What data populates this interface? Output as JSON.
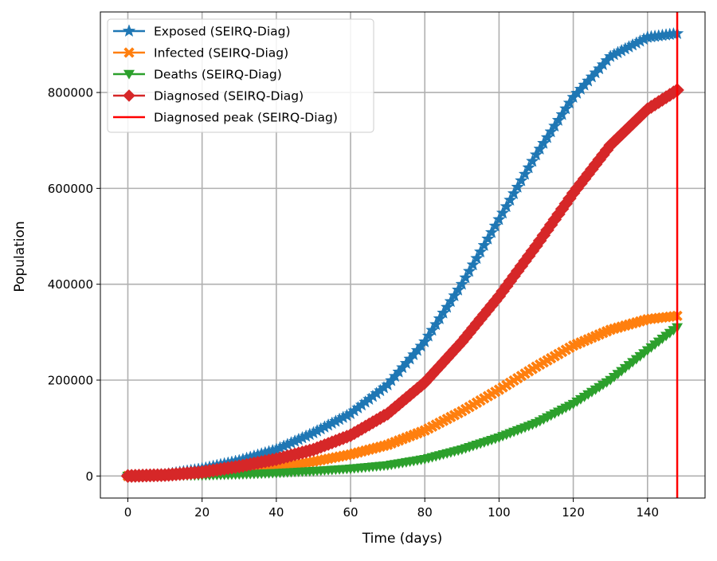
{
  "chart_data": {
    "type": "line",
    "title": "",
    "xlabel": "Time (days)",
    "ylabel": "Population",
    "xlim": [
      -7.4,
      155.5
    ],
    "ylim": [
      -46000,
      968000
    ],
    "xticks": [
      0,
      20,
      40,
      60,
      80,
      100,
      120,
      140
    ],
    "yticks": [
      0,
      200000,
      400000,
      600000,
      800000
    ],
    "grid": true,
    "legend_position": "upper left",
    "series": [
      {
        "name": "Exposed (SEIRQ-Diag)",
        "color": "#1f77b4",
        "marker": "star",
        "x": [
          0,
          10,
          20,
          30,
          40,
          50,
          60,
          70,
          80,
          90,
          100,
          110,
          120,
          130,
          140,
          148
        ],
        "y": [
          0,
          3000,
          15000,
          32000,
          55000,
          90000,
          130000,
          190000,
          280000,
          400000,
          535000,
          670000,
          790000,
          875000,
          915000,
          923000
        ]
      },
      {
        "name": "Infected (SEIRQ-Diag)",
        "color": "#ff7f0e",
        "marker": "x",
        "x": [
          0,
          10,
          20,
          30,
          40,
          50,
          60,
          70,
          80,
          90,
          100,
          110,
          120,
          130,
          140,
          148
        ],
        "y": [
          0,
          1000,
          5000,
          10000,
          18000,
          30000,
          45000,
          65000,
          95000,
          135000,
          180000,
          228000,
          272000,
          305000,
          327000,
          334000
        ]
      },
      {
        "name": "Deaths (SEIRQ-Diag)",
        "color": "#2ca02c",
        "marker": "triangle-down",
        "x": [
          0,
          10,
          20,
          30,
          40,
          50,
          60,
          70,
          80,
          90,
          100,
          110,
          120,
          130,
          140,
          148
        ],
        "y": [
          0,
          300,
          1000,
          3000,
          6000,
          10000,
          15000,
          22000,
          35000,
          55000,
          80000,
          110000,
          150000,
          200000,
          262000,
          310000
        ]
      },
      {
        "name": "Diagnosed (SEIRQ-Diag)",
        "color": "#d62728",
        "marker": "diamond",
        "x": [
          0,
          10,
          20,
          30,
          40,
          50,
          60,
          70,
          80,
          90,
          100,
          110,
          120,
          130,
          140,
          148
        ],
        "y": [
          0,
          2000,
          8000,
          20000,
          35000,
          55000,
          85000,
          130000,
          195000,
          280000,
          375000,
          480000,
          590000,
          690000,
          765000,
          805000
        ]
      }
    ],
    "vline": {
      "name": "Diagnosed peak (SEIRQ-Diag)",
      "x": 148,
      "color": "#ff0000"
    }
  }
}
